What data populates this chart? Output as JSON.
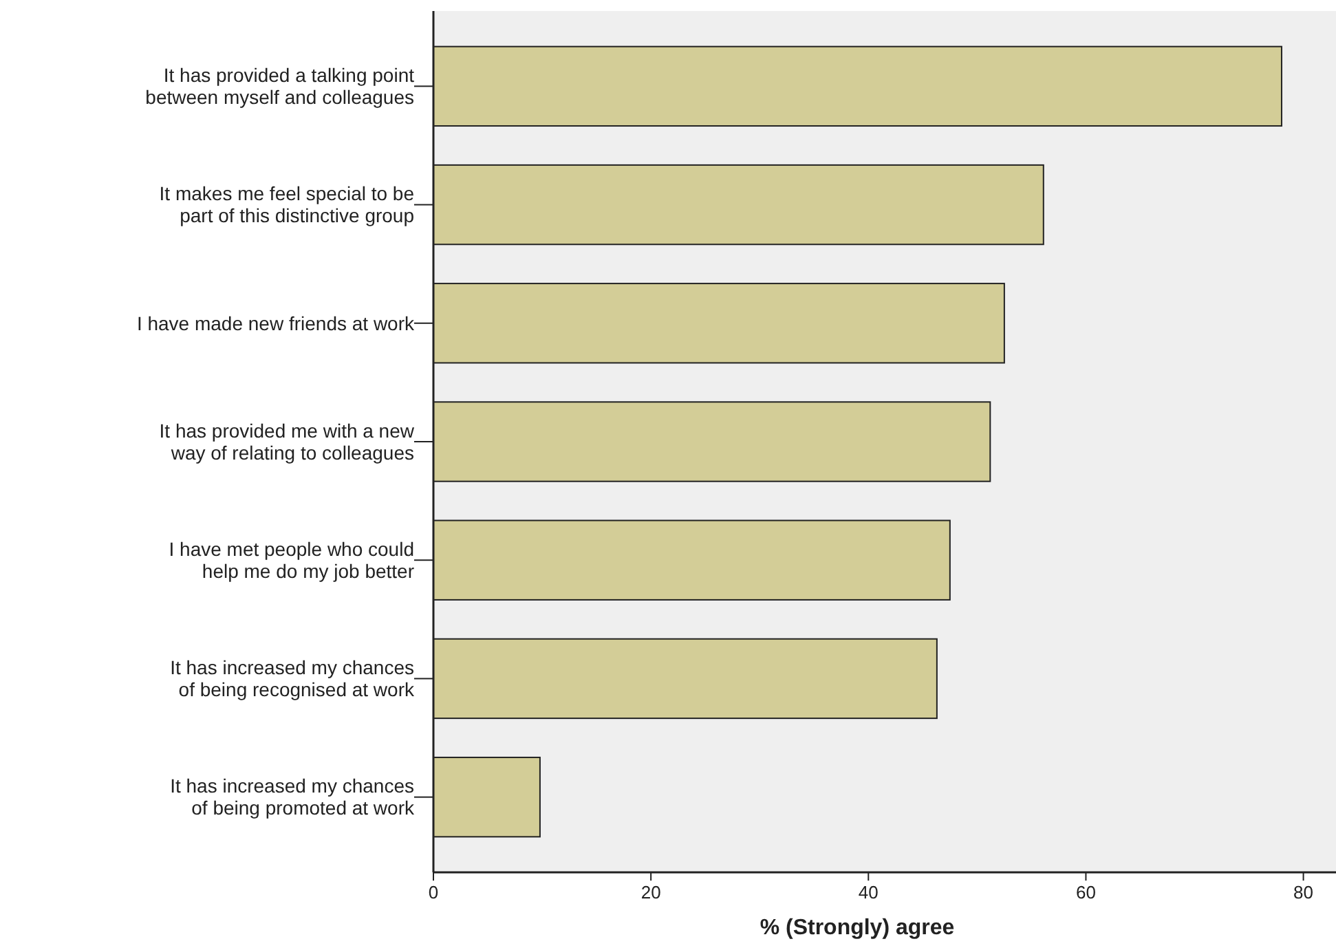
{
  "chart_data": {
    "type": "bar",
    "orientation": "horizontal",
    "xlabel": "% (Strongly) agree",
    "categories": [
      "It has provided a talking point between myself and colleagues",
      "It makes me feel special to be part of this distinctive group",
      "I have made new friends at work",
      "It has provided me with a new way of relating to colleagues",
      "I have met people who could help me do my job better",
      "It has increased my chances of being recognised at work",
      "It has increased my chances of being promoted at work"
    ],
    "values": [
      78.0,
      56.1,
      52.5,
      51.2,
      47.5,
      46.3,
      9.8
    ],
    "color": "#d3cd97",
    "xlim": [
      0,
      83
    ],
    "xticks": [
      0,
      20,
      40,
      60,
      80
    ],
    "grid": false
  }
}
